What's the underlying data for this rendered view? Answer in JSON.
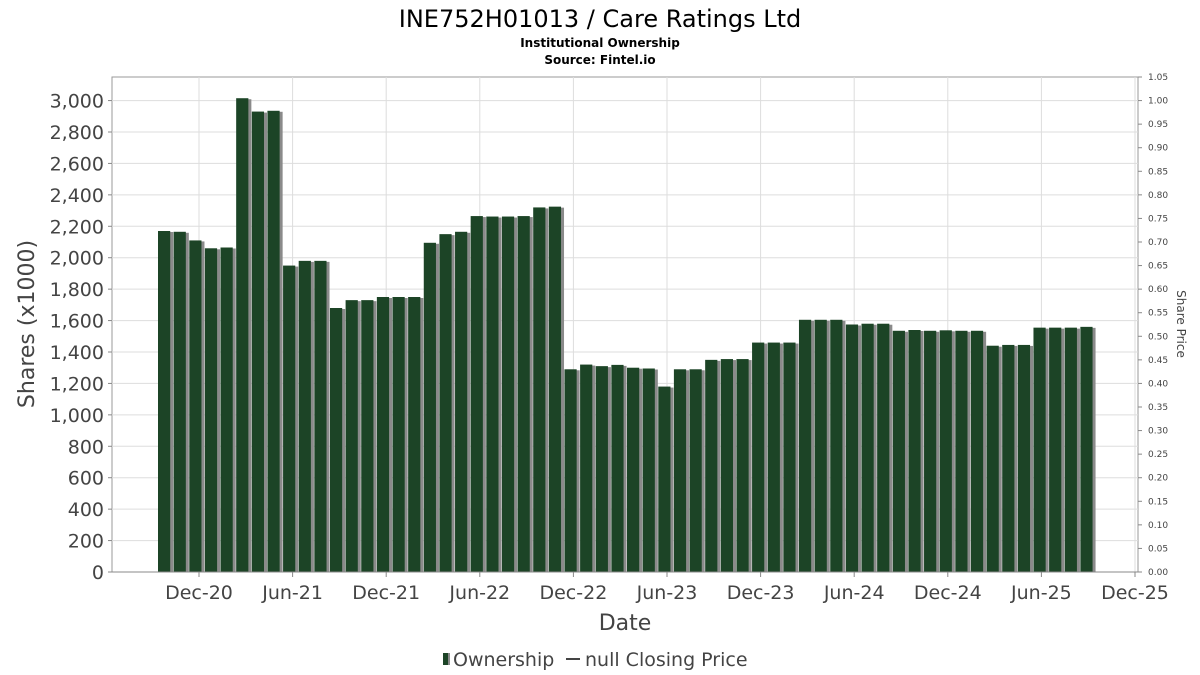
{
  "chart_data": {
    "type": "bar",
    "title": "INE752H01013 / Care Ratings Ltd",
    "subtitle": "Institutional Ownership",
    "source": "Source: Fintel.io",
    "xlabel": "Date",
    "ylabel": "Shares (x1000)",
    "y2label": "Share Price",
    "ylim": [
      0,
      3150
    ],
    "y2lim": [
      0,
      1.05
    ],
    "grid": true,
    "legend_position": "bottom-center",
    "y_ticks": [
      "0",
      "200",
      "400",
      "600",
      "800",
      "1,000",
      "1,200",
      "1,400",
      "1,600",
      "1,800",
      "2,000",
      "2,200",
      "2,400",
      "2,600",
      "2,800",
      "3,000"
    ],
    "y2_ticks": [
      "0.00",
      "0.05",
      "0.10",
      "0.15",
      "0.20",
      "0.25",
      "0.30",
      "0.35",
      "0.40",
      "0.45",
      "0.50",
      "0.55",
      "0.60",
      "0.65",
      "0.70",
      "0.75",
      "0.80",
      "0.85",
      "0.90",
      "0.95",
      "1.00",
      "1.05"
    ],
    "x_ticks": [
      "Dec-20",
      "Jun-21",
      "Dec-21",
      "Jun-22",
      "Dec-22",
      "Jun-23",
      "Dec-23",
      "Jun-24",
      "Dec-24",
      "Jun-25",
      "Dec-25"
    ],
    "series": [
      {
        "name": "Ownership",
        "color": "#1c4426",
        "values": [
          2170,
          2165,
          2110,
          2060,
          2065,
          3015,
          2930,
          2935,
          1950,
          1980,
          1980,
          1680,
          1730,
          1730,
          1750,
          1750,
          1750,
          2095,
          2150,
          2165,
          2265,
          2262,
          2262,
          2265,
          2320,
          2325,
          1290,
          1320,
          1310,
          1318,
          1300,
          1295,
          1180,
          1290,
          1290,
          1350,
          1355,
          1355,
          1460,
          1460,
          1460,
          1605,
          1605,
          1605,
          1575,
          1580,
          1580,
          1535,
          1540,
          1535,
          1538,
          1535,
          1535,
          1440,
          1445,
          1445,
          1555,
          1555,
          1555,
          1560
        ]
      },
      {
        "name": "null Closing Price",
        "color": "#444444",
        "values": []
      }
    ]
  }
}
